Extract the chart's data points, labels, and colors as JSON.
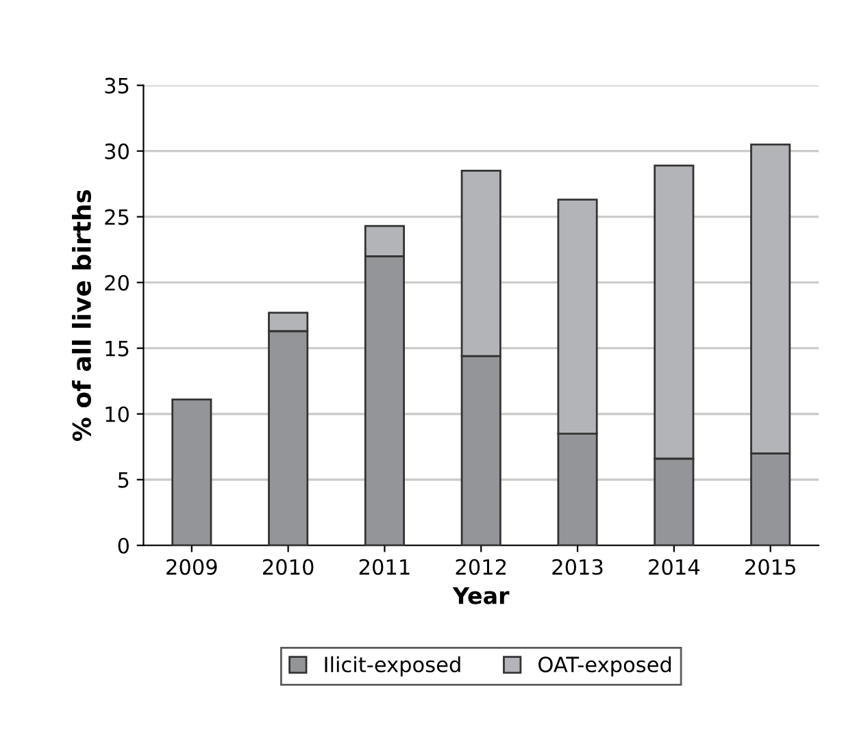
{
  "chart_data": {
    "type": "bar",
    "stacked": true,
    "xlabel": "Year",
    "ylabel": "% of all live births",
    "categories": [
      "2009",
      "2010",
      "2011",
      "2012",
      "2013",
      "2014",
      "2015"
    ],
    "series": [
      {
        "name": "Ilicit-exposed",
        "color": "#939598",
        "values": [
          11.1,
          16.3,
          22.0,
          14.4,
          8.5,
          6.6,
          7.0
        ]
      },
      {
        "name": "OAT-exposed",
        "color": "#b3b4b7",
        "values": [
          null,
          1.4,
          2.3,
          14.1,
          17.8,
          22.3,
          23.5
        ]
      }
    ],
    "ylim": [
      0,
      35
    ],
    "yticks": [
      0,
      5,
      10,
      15,
      20,
      25,
      30,
      35
    ],
    "grid": "y",
    "legend": "bottom"
  }
}
